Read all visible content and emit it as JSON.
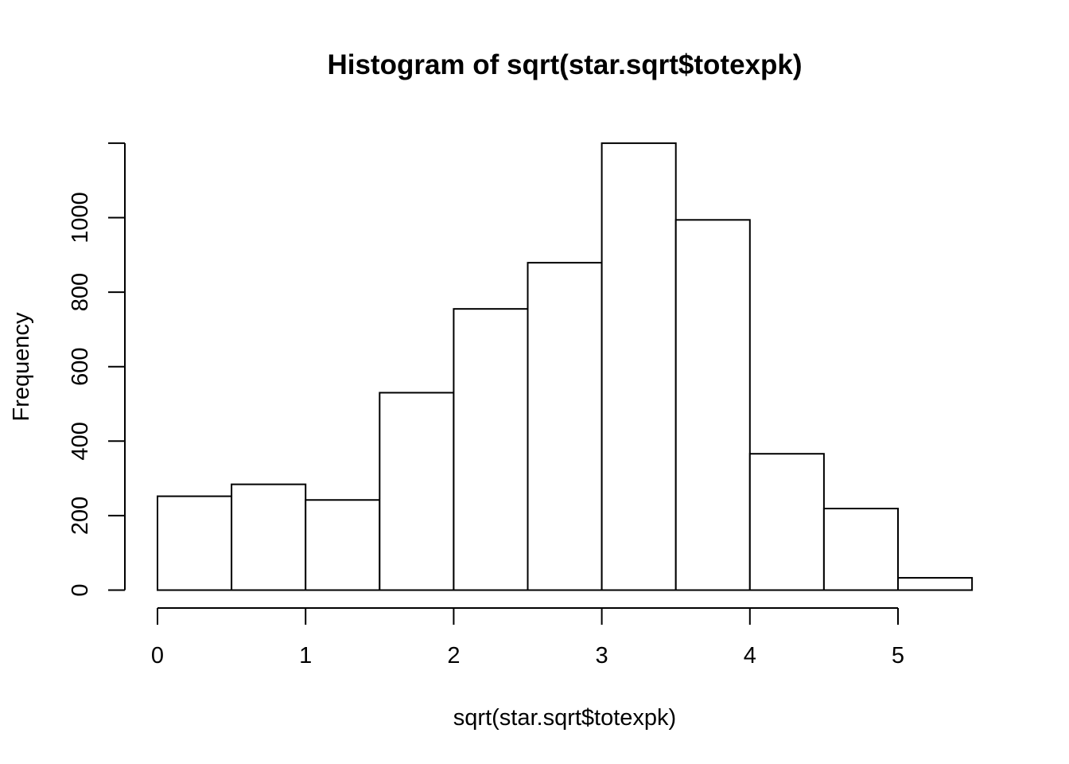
{
  "chart_data": {
    "type": "bar",
    "title": "Histogram of sqrt(star.sqrt$totexpk)",
    "xlabel": "sqrt(star.sqrt$totexpk)",
    "ylabel": "Frequency",
    "bins": [
      {
        "x0": 0.0,
        "x1": 0.5,
        "count": 252
      },
      {
        "x0": 0.5,
        "x1": 1.0,
        "count": 284
      },
      {
        "x0": 1.0,
        "x1": 1.5,
        "count": 242
      },
      {
        "x0": 1.5,
        "x1": 2.0,
        "count": 530
      },
      {
        "x0": 2.0,
        "x1": 2.5,
        "count": 755
      },
      {
        "x0": 2.5,
        "x1": 3.0,
        "count": 879
      },
      {
        "x0": 3.0,
        "x1": 3.5,
        "count": 1200
      },
      {
        "x0": 3.5,
        "x1": 4.0,
        "count": 994
      },
      {
        "x0": 4.0,
        "x1": 4.5,
        "count": 366
      },
      {
        "x0": 4.5,
        "x1": 5.0,
        "count": 219
      },
      {
        "x0": 5.0,
        "x1": 5.5,
        "count": 33
      }
    ],
    "x_ticks": [
      0,
      1,
      2,
      3,
      4,
      5
    ],
    "y_ticks": [
      0,
      200,
      400,
      600,
      800,
      1000
    ],
    "xlim": [
      0,
      5.5
    ],
    "ylim": [
      0,
      1200
    ],
    "grid": false,
    "legend": "none"
  }
}
